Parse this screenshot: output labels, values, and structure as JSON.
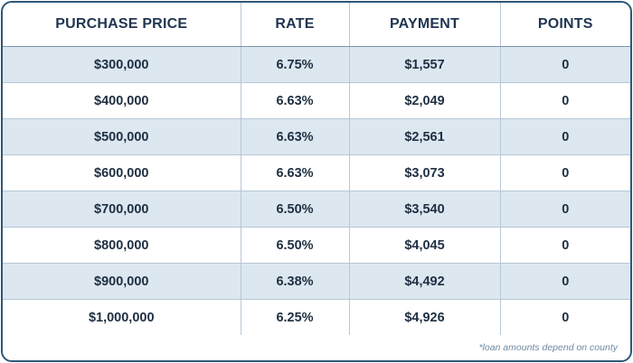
{
  "chart_data": {
    "type": "table",
    "columns": [
      "PURCHASE PRICE",
      "RATE",
      "PAYMENT",
      "POINTS"
    ],
    "rows": [
      [
        "$300,000",
        "6.75%",
        "$1,557",
        "0"
      ],
      [
        "$400,000",
        "6.63%",
        "$2,049",
        "0"
      ],
      [
        "$500,000",
        "6.63%",
        "$2,561",
        "0"
      ],
      [
        "$600,000",
        "6.63%",
        "$3,073",
        "0"
      ],
      [
        "$700,000",
        "6.50%",
        "$3,540",
        "0"
      ],
      [
        "$800,000",
        "6.50%",
        "$4,045",
        "0"
      ],
      [
        "$900,000",
        "6.38%",
        "$4,492",
        "0"
      ],
      [
        "$1,000,000",
        "6.25%",
        "$4,926",
        "0"
      ]
    ],
    "footnote": "*loan amounts depend on county"
  },
  "colors": {
    "border": "#2f5675",
    "header_text": "#1f3550",
    "stripe": "#dce7f0",
    "footnote": "#6f8aa3"
  }
}
